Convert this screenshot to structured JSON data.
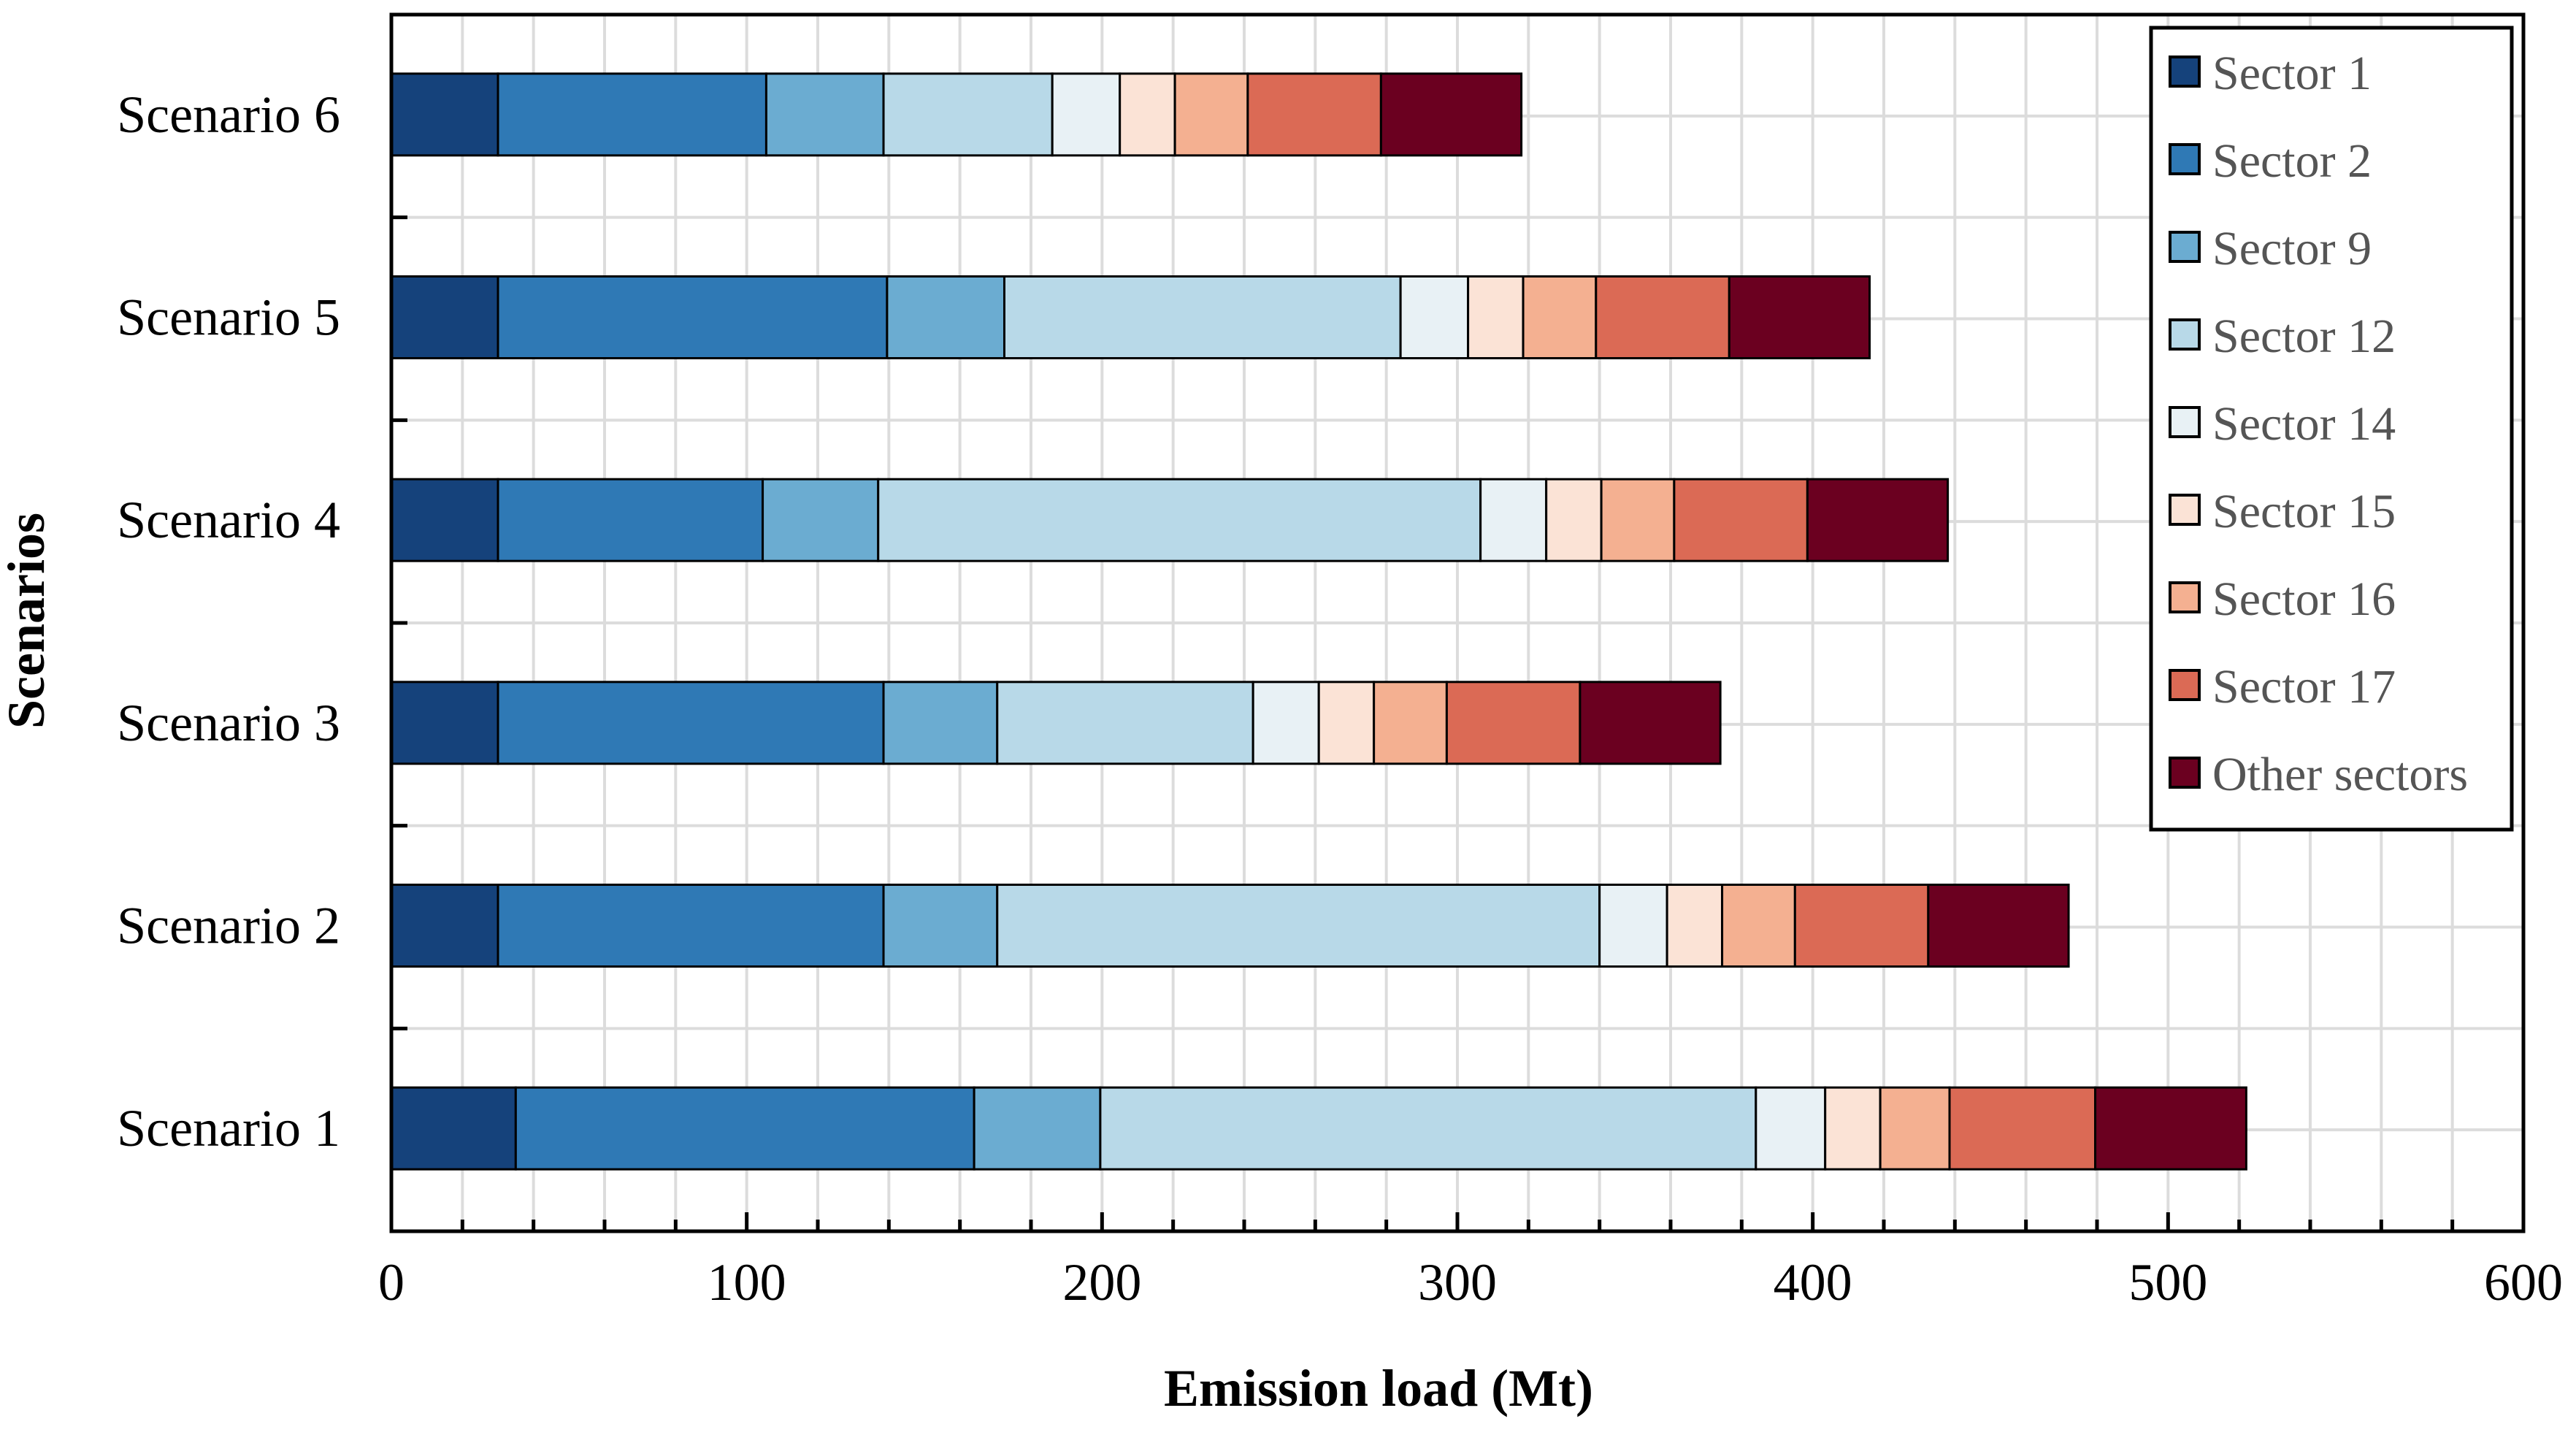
{
  "chart_data": {
    "type": "bar",
    "orientation": "horizontal",
    "stacked": true,
    "xlabel": "Emission load (Mt)",
    "ylabel": "Scenarios",
    "xlim": [
      0,
      600
    ],
    "xticks": [
      "0",
      "100",
      "200",
      "300",
      "400",
      "500",
      "600"
    ],
    "grid": true,
    "legend_position": "top-right",
    "categories": [
      "Scenario 1",
      "Scenario 2",
      "Scenario 3",
      "Scenario 4",
      "Scenario 5",
      "Scenario 6"
    ],
    "series": [
      {
        "name": "Sector 1",
        "color": "#15427b",
        "values": [
          35,
          30,
          30,
          30,
          30,
          30
        ]
      },
      {
        "name": "Sector 2",
        "color": "#2f79b5",
        "values": [
          129,
          108.5,
          108.5,
          74.5,
          109.5,
          75.5
        ]
      },
      {
        "name": "Sector 9",
        "color": "#6bacd1",
        "values": [
          35.5,
          32,
          32,
          32.5,
          33,
          33
        ]
      },
      {
        "name": "Sector 12",
        "color": "#b8d9e8",
        "values": [
          184.5,
          169.5,
          72,
          169.5,
          111.5,
          47.5
        ]
      },
      {
        "name": "Sector 14",
        "color": "#e8f1f5",
        "values": [
          19.5,
          19,
          18.5,
          18.5,
          19,
          19
        ]
      },
      {
        "name": "Sector 15",
        "color": "#fbe3d6",
        "values": [
          15.5,
          15.5,
          15.5,
          15.5,
          15.5,
          15.5
        ]
      },
      {
        "name": "Sector 16",
        "color": "#f4b091",
        "values": [
          19.5,
          20.5,
          20.5,
          20.5,
          20.5,
          20.5
        ]
      },
      {
        "name": "Sector 17",
        "color": "#db6a55",
        "values": [
          41,
          37.5,
          37.5,
          37.5,
          37.5,
          37.5
        ]
      },
      {
        "name": "Other sectors",
        "color": "#6b0020",
        "values": [
          42.5,
          39.5,
          39.5,
          39.5,
          39.5,
          39.5
        ]
      }
    ]
  }
}
